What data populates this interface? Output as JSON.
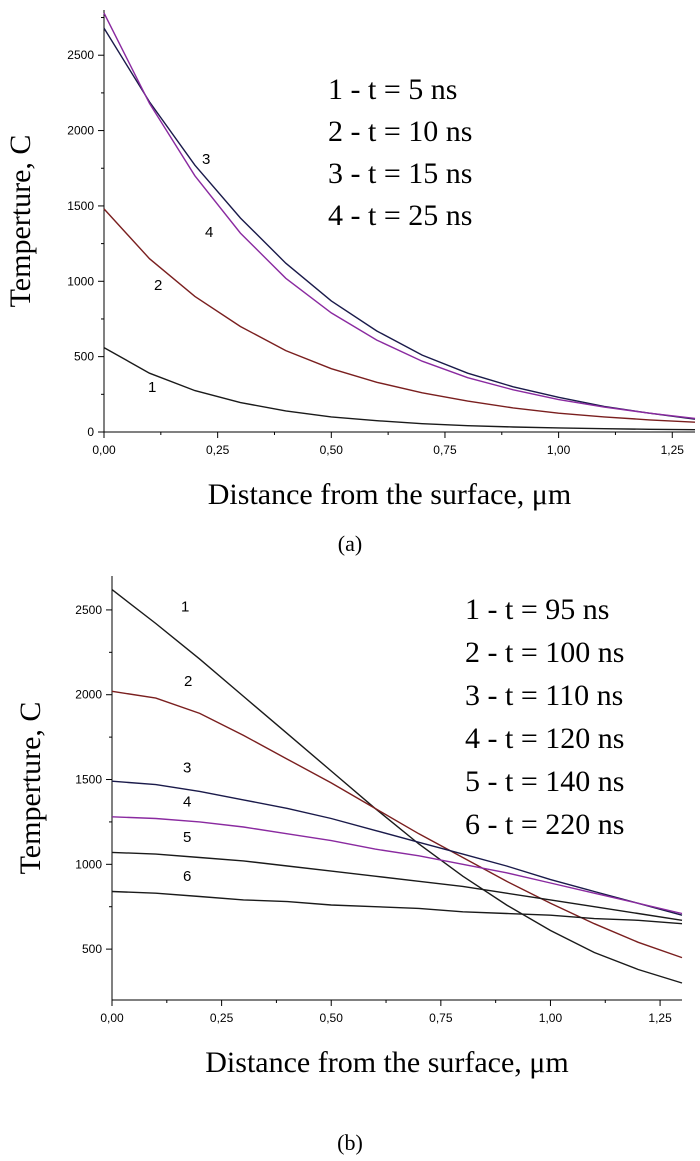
{
  "chart_data": [
    {
      "type": "line",
      "caption": "(a)",
      "xlabel": "Distance from the surface, μm",
      "ylabel": "Temperture, C",
      "xlim": [
        0,
        1.3
      ],
      "ylim": [
        0,
        2800
      ],
      "xticks": [
        "0,00",
        "0,25",
        "0,50",
        "0,75",
        "1,00",
        "1,25"
      ],
      "yticks": [
        "0",
        "500",
        "1000",
        "1500",
        "2000",
        "2500"
      ],
      "legend": [
        "1 - t = 5 ns",
        "2 - t = 10 ns",
        "3 - t = 15 ns",
        "4 - t = 25 ns"
      ],
      "legend_position": "top-right",
      "series": [
        {
          "label": "1",
          "color": "#1a1a1a",
          "x": [
            0,
            0.1,
            0.2,
            0.3,
            0.4,
            0.5,
            0.6,
            0.7,
            0.8,
            0.9,
            1.0,
            1.1,
            1.2,
            1.3
          ],
          "y": [
            560,
            390,
            275,
            195,
            140,
            100,
            75,
            55,
            42,
            33,
            27,
            22,
            18,
            15
          ]
        },
        {
          "label": "2",
          "color": "#7a1f1f",
          "x": [
            0,
            0.1,
            0.2,
            0.3,
            0.4,
            0.5,
            0.6,
            0.7,
            0.8,
            0.9,
            1.0,
            1.1,
            1.2,
            1.3
          ],
          "y": [
            1480,
            1150,
            900,
            700,
            540,
            420,
            330,
            260,
            205,
            160,
            125,
            100,
            80,
            65
          ]
        },
        {
          "label": "3",
          "color": "#1a1a4a",
          "x": [
            0,
            0.1,
            0.2,
            0.3,
            0.4,
            0.5,
            0.6,
            0.7,
            0.8,
            0.9,
            1.0,
            1.1,
            1.2,
            1.3
          ],
          "y": [
            2680,
            2190,
            1770,
            1420,
            1120,
            870,
            670,
            510,
            390,
            300,
            230,
            170,
            125,
            85
          ]
        },
        {
          "label": "4",
          "color": "#8a2aa0",
          "x": [
            0,
            0.1,
            0.2,
            0.3,
            0.4,
            0.5,
            0.6,
            0.7,
            0.8,
            0.9,
            1.0,
            1.1,
            1.2,
            1.3
          ],
          "y": [
            2780,
            2180,
            1700,
            1320,
            1020,
            790,
            610,
            470,
            360,
            280,
            215,
            165,
            125,
            90
          ]
        }
      ]
    },
    {
      "type": "line",
      "caption": "(b)",
      "xlabel": "Distance from the surface, μm",
      "ylabel": "Temperture, C",
      "xlim": [
        0,
        1.3
      ],
      "ylim": [
        200,
        2700
      ],
      "xticks": [
        "0,00",
        "0,25",
        "0,50",
        "0,75",
        "1,00",
        "1,25"
      ],
      "yticks": [
        "500",
        "1000",
        "1500",
        "2000",
        "2500"
      ],
      "legend": [
        "1 - t = 95 ns",
        "2 - t = 100 ns",
        "3 - t = 110 ns",
        "4 - t = 120 ns",
        "5 - t = 140 ns",
        "6 - t = 220 ns"
      ],
      "legend_position": "top-right",
      "series": [
        {
          "label": "1",
          "color": "#1a1a1a",
          "x": [
            0,
            0.1,
            0.2,
            0.3,
            0.4,
            0.5,
            0.6,
            0.7,
            0.8,
            0.9,
            1.0,
            1.1,
            1.2,
            1.3
          ],
          "y": [
            2620,
            2420,
            2210,
            1990,
            1770,
            1550,
            1330,
            1120,
            930,
            760,
            610,
            480,
            380,
            300
          ]
        },
        {
          "label": "2",
          "color": "#7a1f1f",
          "x": [
            0,
            0.1,
            0.2,
            0.3,
            0.4,
            0.5,
            0.6,
            0.7,
            0.8,
            0.9,
            1.0,
            1.1,
            1.2,
            1.3
          ],
          "y": [
            2020,
            1980,
            1890,
            1760,
            1620,
            1480,
            1330,
            1180,
            1040,
            900,
            770,
            650,
            540,
            450
          ]
        },
        {
          "label": "3",
          "color": "#1a1a4a",
          "x": [
            0,
            0.1,
            0.2,
            0.3,
            0.4,
            0.5,
            0.6,
            0.7,
            0.8,
            0.9,
            1.0,
            1.1,
            1.2,
            1.3
          ],
          "y": [
            1490,
            1470,
            1430,
            1380,
            1330,
            1270,
            1200,
            1130,
            1060,
            990,
            910,
            840,
            770,
            700
          ]
        },
        {
          "label": "4",
          "color": "#8a2aa0",
          "x": [
            0,
            0.1,
            0.2,
            0.3,
            0.4,
            0.5,
            0.6,
            0.7,
            0.8,
            0.9,
            1.0,
            1.1,
            1.2,
            1.3
          ],
          "y": [
            1280,
            1270,
            1250,
            1220,
            1180,
            1140,
            1090,
            1050,
            1000,
            950,
            890,
            830,
            770,
            710
          ]
        },
        {
          "label": "5",
          "color": "#1a1a1a",
          "x": [
            0,
            0.1,
            0.2,
            0.3,
            0.4,
            0.5,
            0.6,
            0.7,
            0.8,
            0.9,
            1.0,
            1.1,
            1.2,
            1.3
          ],
          "y": [
            1070,
            1060,
            1040,
            1020,
            990,
            960,
            930,
            900,
            870,
            830,
            790,
            750,
            710,
            670
          ]
        },
        {
          "label": "6",
          "color": "#1a1a1a",
          "x": [
            0,
            0.1,
            0.2,
            0.3,
            0.4,
            0.5,
            0.6,
            0.7,
            0.8,
            0.9,
            1.0,
            1.1,
            1.2,
            1.3
          ],
          "y": [
            840,
            830,
            810,
            790,
            780,
            760,
            750,
            740,
            720,
            710,
            700,
            680,
            670,
            650
          ]
        }
      ]
    }
  ]
}
